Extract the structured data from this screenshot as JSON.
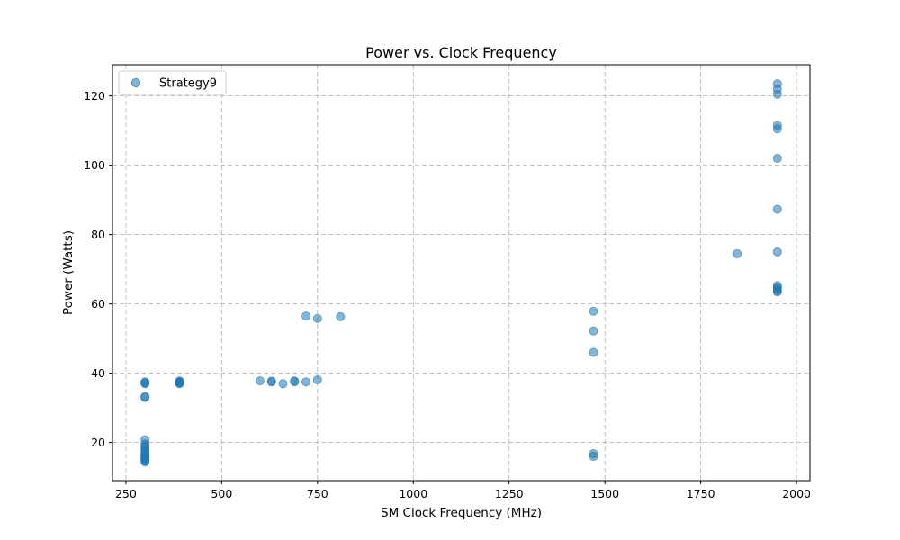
{
  "chart_data": {
    "type": "scatter",
    "title": "Power vs. Clock Frequency",
    "xlabel": "SM Clock Frequency (MHz)",
    "ylabel": "Power (Watts)",
    "xlim": [
      215,
      2035
    ],
    "ylim": [
      9,
      129
    ],
    "xticks": [
      250,
      500,
      750,
      1000,
      1250,
      1500,
      1750,
      2000
    ],
    "yticks": [
      20,
      40,
      60,
      80,
      100,
      120
    ],
    "grid": true,
    "legend_position": "top-left",
    "series": [
      {
        "name": "Strategy9",
        "color": "#1f77b4",
        "alpha": 0.55,
        "points": [
          [
            300,
            37.5
          ],
          [
            300,
            37.0
          ],
          [
            300,
            37.2
          ],
          [
            300,
            33.3
          ],
          [
            300,
            33.0
          ],
          [
            300,
            20.8
          ],
          [
            300,
            19.6
          ],
          [
            300,
            19.0
          ],
          [
            300,
            18.4
          ],
          [
            300,
            17.8
          ],
          [
            300,
            17.2
          ],
          [
            300,
            16.7
          ],
          [
            300,
            16.2
          ],
          [
            300,
            15.8
          ],
          [
            300,
            15.4
          ],
          [
            300,
            15.0
          ],
          [
            300,
            14.7
          ],
          [
            300,
            14.4
          ],
          [
            390,
            37.8
          ],
          [
            390,
            37.5
          ],
          [
            390,
            37.2
          ],
          [
            390,
            37.0
          ],
          [
            390,
            37.4
          ],
          [
            600,
            37.8
          ],
          [
            630,
            37.7
          ],
          [
            630,
            37.5
          ],
          [
            660,
            37.0
          ],
          [
            690,
            37.8
          ],
          [
            690,
            37.5
          ],
          [
            720,
            37.5
          ],
          [
            750,
            38.1
          ],
          [
            720,
            56.5
          ],
          [
            750,
            55.8
          ],
          [
            810,
            56.3
          ],
          [
            1470,
            57.9
          ],
          [
            1470,
            52.2
          ],
          [
            1470,
            46.0
          ],
          [
            1470,
            16.8
          ],
          [
            1470,
            16.0
          ],
          [
            1845,
            74.5
          ],
          [
            1950,
            123.5
          ],
          [
            1950,
            122.0
          ],
          [
            1950,
            120.5
          ],
          [
            1950,
            111.5
          ],
          [
            1950,
            110.5
          ],
          [
            1950,
            102.0
          ],
          [
            1950,
            87.3
          ],
          [
            1950,
            75.0
          ],
          [
            1950,
            65.3
          ],
          [
            1950,
            64.8
          ],
          [
            1950,
            64.3
          ],
          [
            1950,
            63.8
          ],
          [
            1950,
            63.5
          ]
        ]
      }
    ]
  }
}
